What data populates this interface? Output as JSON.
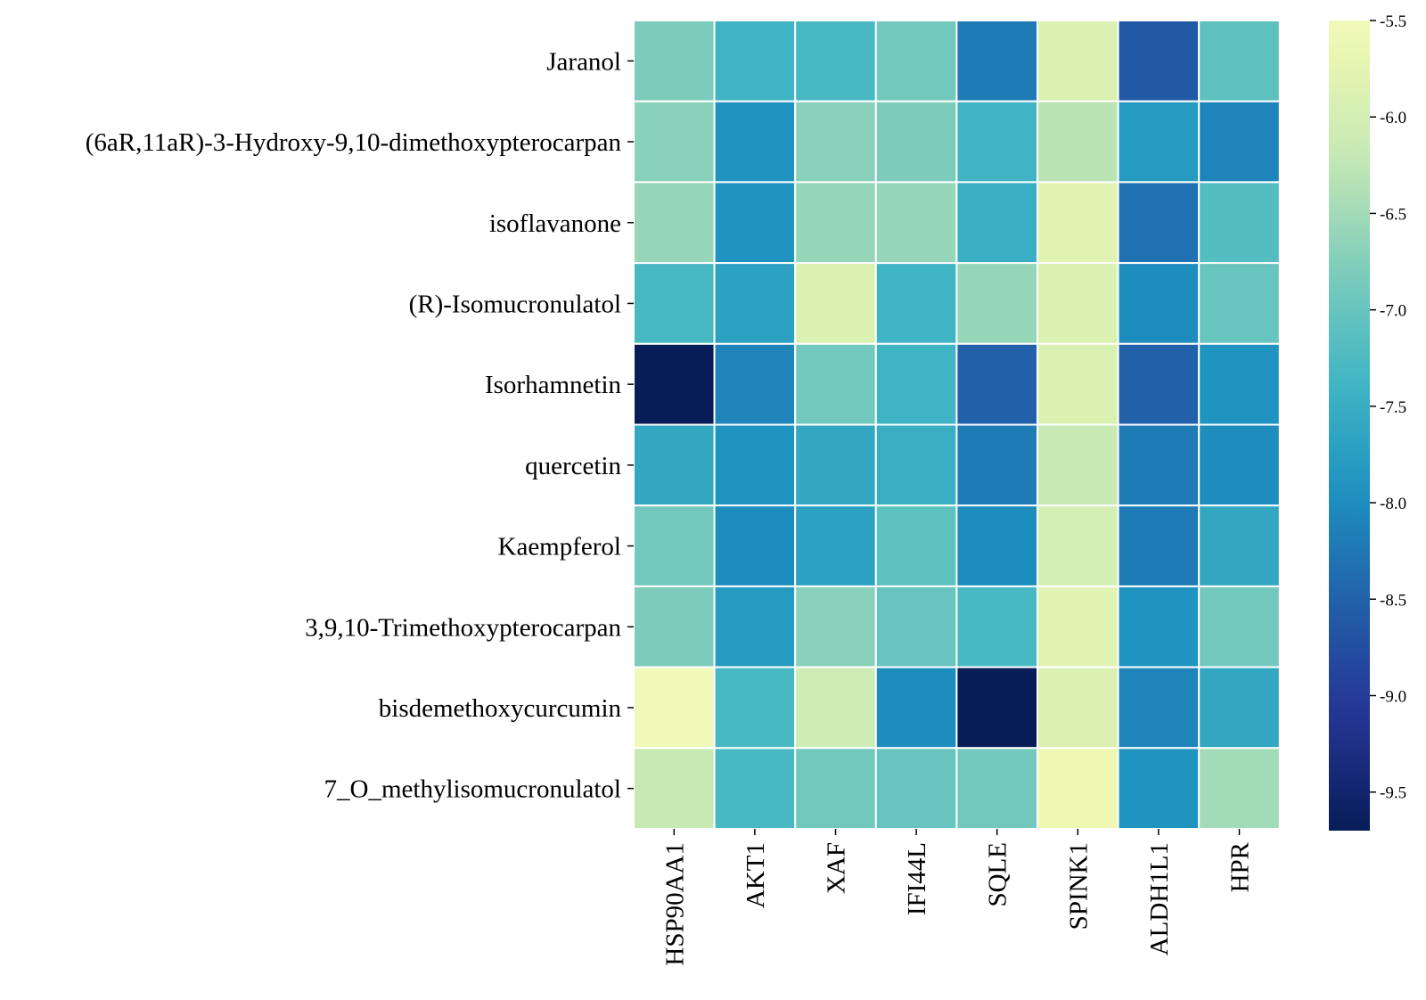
{
  "chart_data": {
    "type": "heatmap",
    "title": "",
    "xlabel": "",
    "ylabel": "",
    "rows": [
      "Jaranol",
      "(6aR,11aR)-3-Hydroxy-9,10-dimethoxypterocarpan",
      "isoflavanone",
      "(R)-Isomucronulatol",
      "Isorhamnetin",
      "quercetin",
      "Kaempferol",
      "3,9,10-Trimethoxypterocarpan",
      "bisdemethoxycurcumin",
      "7_O_methylisomucronulatol"
    ],
    "columns": [
      "HSP90AA1",
      "AKT1",
      "XAF",
      "IFI44L",
      "SQLE",
      "SPINK1",
      "ALDH1L1",
      "HPR"
    ],
    "values": [
      [
        -6.8,
        -7.4,
        -7.3,
        -6.9,
        -8.2,
        -5.9,
        -8.6,
        -7.1
      ],
      [
        -6.7,
        -7.9,
        -6.7,
        -6.8,
        -7.4,
        -6.3,
        -7.8,
        -8.1
      ],
      [
        -6.6,
        -7.9,
        -6.6,
        -6.6,
        -7.5,
        -5.8,
        -8.3,
        -7.2
      ],
      [
        -7.3,
        -7.7,
        -5.9,
        -7.4,
        -6.6,
        -5.9,
        -8.0,
        -7.0
      ],
      [
        -9.7,
        -8.1,
        -6.9,
        -7.4,
        -8.5,
        -5.9,
        -8.5,
        -7.9
      ],
      [
        -7.6,
        -7.9,
        -7.6,
        -7.5,
        -8.2,
        -6.2,
        -8.2,
        -8.0
      ],
      [
        -6.9,
        -8.0,
        -7.7,
        -7.1,
        -8.0,
        -6.0,
        -8.2,
        -7.6
      ],
      [
        -6.8,
        -7.8,
        -6.7,
        -7.0,
        -7.3,
        -5.8,
        -7.9,
        -6.9
      ],
      [
        -5.5,
        -7.3,
        -6.1,
        -8.0,
        -9.7,
        -5.9,
        -8.1,
        -7.6
      ],
      [
        -6.2,
        -7.3,
        -6.9,
        -7.0,
        -6.9,
        -5.6,
        -7.9,
        -6.5
      ]
    ],
    "colorbar": {
      "vmin": -9.7,
      "vmax": -5.5,
      "ticks": [
        -5.5,
        -6.0,
        -6.5,
        -7.0,
        -7.5,
        -8.0,
        -8.5,
        -9.0,
        -9.5
      ],
      "tick_labels": [
        "-5.5",
        "-6.0",
        "-6.5",
        "-7.0",
        "-7.5",
        "-8.0",
        "-8.5",
        "-9.0",
        "-9.5"
      ],
      "colormap": "YlGnBu"
    }
  }
}
